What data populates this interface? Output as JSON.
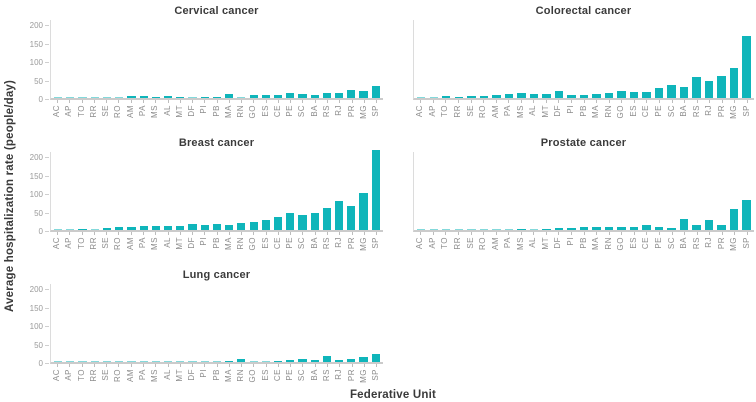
{
  "figure": {
    "ylabel": "Average hospitalization rate (people/day)",
    "xlabel": "Federative Unit"
  },
  "colors": {
    "bar": "#0fb5ba",
    "bar_light": "#84d9db",
    "title_text": "#3b3b3b",
    "tick_text": "#9a9a9a",
    "axis_line": "#cbcbcb"
  },
  "chart_data": [
    {
      "type": "bar",
      "title": "Cervical cancer",
      "grid_position": "row1-left",
      "y_tick_labels_visible": true,
      "yticks": [
        0,
        50,
        100,
        150,
        200
      ],
      "ylim": [
        0,
        220
      ],
      "categories": [
        "AC",
        "AP",
        "TO",
        "RR",
        "SE",
        "RO",
        "AM",
        "PA",
        "MS",
        "AL",
        "MT",
        "DF",
        "PI",
        "PB",
        "MA",
        "RN",
        "GO",
        "ES",
        "CE",
        "PE",
        "SC",
        "BA",
        "RS",
        "RJ",
        "PR",
        "MG",
        "SP"
      ],
      "values": [
        1,
        1,
        2,
        3,
        3,
        3,
        5,
        5,
        4,
        5,
        4,
        2,
        4,
        4,
        10,
        3,
        7,
        7,
        9,
        13,
        11,
        9,
        14,
        14,
        22,
        20,
        32
      ]
    },
    {
      "type": "bar",
      "title": "Colorectal cancer",
      "grid_position": "row1-right",
      "y_tick_labels_visible": false,
      "yticks": [
        0,
        50,
        100,
        150,
        200
      ],
      "ylim": [
        0,
        220
      ],
      "categories": [
        "AC",
        "AP",
        "TO",
        "RR",
        "SE",
        "RO",
        "AM",
        "PA",
        "MS",
        "AL",
        "MT",
        "DF",
        "PI",
        "PB",
        "MA",
        "RN",
        "GO",
        "ES",
        "CE",
        "PE",
        "SC",
        "BA",
        "RS",
        "RJ",
        "PR",
        "MG",
        "SP"
      ],
      "values": [
        2,
        2,
        5,
        4,
        6,
        6,
        8,
        10,
        14,
        10,
        12,
        20,
        8,
        7,
        11,
        13,
        19,
        17,
        17,
        27,
        35,
        30,
        57,
        46,
        59,
        81,
        168
      ]
    },
    {
      "type": "bar",
      "title": "Breast cancer",
      "grid_position": "row2-left",
      "y_tick_labels_visible": true,
      "yticks": [
        0,
        50,
        100,
        150,
        200
      ],
      "ylim": [
        0,
        220
      ],
      "categories": [
        "AC",
        "AP",
        "TO",
        "RR",
        "SE",
        "RO",
        "AM",
        "PA",
        "MS",
        "AL",
        "MT",
        "DF",
        "PI",
        "PB",
        "MA",
        "RN",
        "GO",
        "ES",
        "CE",
        "PE",
        "SC",
        "BA",
        "RS",
        "RJ",
        "PR",
        "MG",
        "SP"
      ],
      "values": [
        2,
        2,
        4,
        3,
        6,
        8,
        7,
        11,
        10,
        11,
        10,
        15,
        14,
        17,
        14,
        18,
        22,
        27,
        34,
        46,
        40,
        47,
        60,
        79,
        66,
        100,
        215
      ]
    },
    {
      "type": "bar",
      "title": "Prostate cancer",
      "grid_position": "row2-right",
      "y_tick_labels_visible": false,
      "yticks": [
        0,
        50,
        100,
        150,
        200
      ],
      "ylim": [
        0,
        220
      ],
      "categories": [
        "AC",
        "AP",
        "TO",
        "RR",
        "SE",
        "RO",
        "AM",
        "PA",
        "MS",
        "AL",
        "MT",
        "DF",
        "PI",
        "PB",
        "MA",
        "RN",
        "GO",
        "ES",
        "CE",
        "PE",
        "SC",
        "BA",
        "RS",
        "RJ",
        "PR",
        "MG",
        "SP"
      ],
      "values": [
        1,
        1,
        2,
        2,
        2,
        3,
        3,
        3,
        4,
        3,
        4,
        5,
        6,
        7,
        8,
        7,
        9,
        8,
        14,
        9,
        6,
        30,
        14,
        26,
        14,
        57,
        81
      ]
    },
    {
      "type": "bar",
      "title": "Lung cancer",
      "grid_position": "row3-left",
      "y_tick_labels_visible": true,
      "yticks": [
        0,
        50,
        100,
        150,
        200
      ],
      "ylim": [
        0,
        220
      ],
      "categories": [
        "AC",
        "AP",
        "TO",
        "RR",
        "SE",
        "RO",
        "AM",
        "PA",
        "MS",
        "AL",
        "MT",
        "DF",
        "PI",
        "PB",
        "MA",
        "RN",
        "GO",
        "ES",
        "CE",
        "PE",
        "SC",
        "BA",
        "RS",
        "RJ",
        "PR",
        "MG",
        "SP"
      ],
      "values": [
        1,
        1,
        2,
        2,
        2,
        2,
        2,
        2,
        2,
        3,
        2,
        2,
        2,
        3,
        4,
        7,
        2,
        3,
        4,
        5,
        7,
        5,
        15,
        5,
        9,
        14,
        22
      ]
    }
  ]
}
